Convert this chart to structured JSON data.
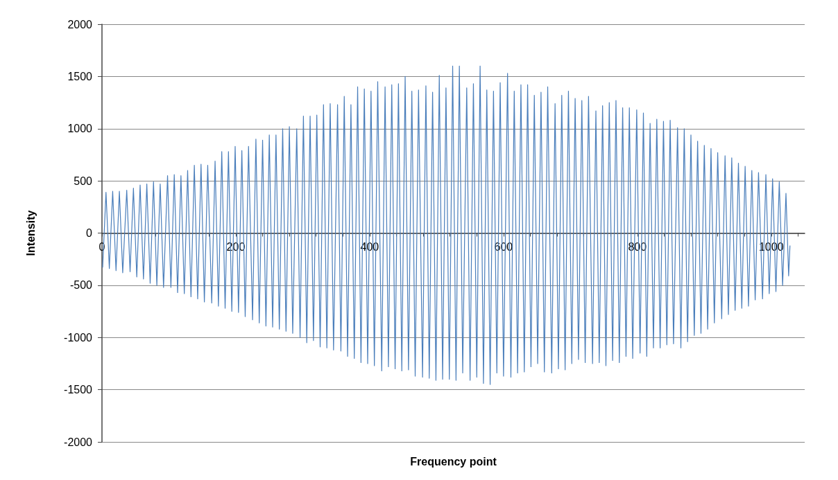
{
  "chart_data": {
    "type": "line",
    "xlabel": "Frequency point",
    "ylabel": "Intensity",
    "xlim": [
      0,
      1050
    ],
    "xticks": [
      0,
      {
        "value": 40,
        "label": null
      },
      {
        "value": 80,
        "label": null
      },
      {
        "value": 120,
        "label": null
      },
      {
        "value": 160,
        "label": null
      },
      200,
      {
        "value": 240,
        "label": null
      },
      {
        "value": 280,
        "label": null
      },
      {
        "value": 320,
        "label": null
      },
      {
        "value": 360,
        "label": null
      },
      400,
      {
        "value": 440,
        "label": null
      },
      {
        "value": 480,
        "label": null
      },
      {
        "value": 520,
        "label": null
      },
      {
        "value": 560,
        "label": null
      },
      600,
      {
        "value": 640,
        "label": null
      },
      {
        "value": 680,
        "label": null
      },
      {
        "value": 720,
        "label": null
      },
      {
        "value": 760,
        "label": null
      },
      800,
      {
        "value": 840,
        "label": null
      },
      {
        "value": 880,
        "label": null
      },
      {
        "value": 920,
        "label": null
      },
      {
        "value": 960,
        "label": null
      },
      1000,
      {
        "value": 1040,
        "label": null
      }
    ],
    "ylim": [
      -2000,
      2000
    ],
    "yticks": [
      -2000,
      -1500,
      -1000,
      -500,
      0,
      500,
      1000,
      1500,
      2000
    ],
    "grid": "y",
    "marker": "none",
    "series": [
      {
        "color": "#4a7ebb",
        "x": [
          1,
          6,
          11,
          16,
          21,
          26,
          31,
          37,
          42,
          47,
          52,
          57,
          62,
          67,
          72,
          77,
          82,
          87,
          92,
          98,
          103,
          108,
          113,
          118,
          123,
          128,
          133,
          138,
          143,
          148,
          153,
          158,
          164,
          169,
          174,
          179,
          184,
          189,
          194,
          199,
          204,
          209,
          214,
          219,
          225,
          230,
          235,
          240,
          245,
          250,
          255,
          260,
          265,
          270,
          275,
          280,
          285,
          291,
          296,
          301,
          306,
          311,
          316,
          321,
          326,
          331,
          336,
          341,
          346,
          352,
          357,
          362,
          367,
          372,
          377,
          382,
          387,
          392,
          397,
          402,
          407,
          412,
          418,
          423,
          428,
          433,
          438,
          443,
          448,
          453,
          458,
          463,
          468,
          473,
          479,
          484,
          489,
          494,
          499,
          504,
          509,
          514,
          519,
          524,
          529,
          534,
          539,
          545,
          550,
          555,
          560,
          565,
          570,
          575,
          580,
          585,
          590,
          595,
          600,
          606,
          611,
          616,
          621,
          626,
          631,
          636,
          641,
          646,
          651,
          656,
          661,
          666,
          672,
          677,
          682,
          687,
          692,
          697,
          702,
          707,
          712,
          717,
          722,
          727,
          733,
          738,
          743,
          748,
          753,
          758,
          763,
          768,
          773,
          778,
          783,
          788,
          793,
          799,
          804,
          809,
          814,
          819,
          824,
          829,
          834,
          839,
          844,
          849,
          854,
          860,
          865,
          870,
          875,
          880,
          885,
          890,
          895,
          900,
          905,
          910,
          915,
          920,
          926,
          931,
          936,
          941,
          946,
          951,
          956,
          961,
          966,
          971,
          976,
          981,
          987,
          992,
          997,
          1002,
          1007,
          1012,
          1017,
          1022,
          1026,
          1028
        ],
        "values": [
          -330,
          390,
          -340,
          400,
          -360,
          400,
          -380,
          410,
          -370,
          430,
          -420,
          460,
          -440,
          470,
          -480,
          490,
          -500,
          470,
          -520,
          550,
          -520,
          560,
          -570,
          550,
          -580,
          600,
          -610,
          650,
          -630,
          660,
          -660,
          650,
          -670,
          690,
          -700,
          780,
          -720,
          780,
          -750,
          830,
          -760,
          790,
          -800,
          830,
          -830,
          900,
          -860,
          890,
          -890,
          940,
          -900,
          940,
          -920,
          1000,
          -940,
          1020,
          -960,
          1000,
          -1000,
          1120,
          -1050,
          1120,
          -1030,
          1130,
          -1090,
          1230,
          -1100,
          1240,
          -1120,
          1230,
          -1130,
          1310,
          -1180,
          1230,
          -1200,
          1400,
          -1240,
          1380,
          -1250,
          1360,
          -1270,
          1450,
          -1320,
          1400,
          -1280,
          1420,
          -1300,
          1430,
          -1320,
          1500,
          -1310,
          1360,
          -1370,
          1370,
          -1380,
          1410,
          -1390,
          1350,
          -1410,
          1510,
          -1400,
          1390,
          -1400,
          1600,
          -1410,
          1600,
          -1340,
          1390,
          -1410,
          1430,
          -1380,
          1600,
          -1440,
          1370,
          -1450,
          1360,
          -1340,
          1440,
          -1370,
          1530,
          -1380,
          1360,
          -1340,
          1420,
          -1330,
          1420,
          -1280,
          1320,
          -1250,
          1350,
          -1330,
          1400,
          -1340,
          1240,
          -1300,
          1320,
          -1310,
          1360,
          -1250,
          1290,
          -1210,
          1270,
          -1240,
          1310,
          -1250,
          1170,
          -1240,
          1220,
          -1270,
          1250,
          -1220,
          1270,
          -1240,
          1200,
          -1180,
          1200,
          -1200,
          1180,
          -1150,
          1150,
          -1180,
          1050,
          -1100,
          1090,
          -1100,
          1070,
          -1070,
          1080,
          -1060,
          1010,
          -1100,
          1000,
          -1040,
          940,
          -980,
          880,
          -960,
          840,
          -920,
          810,
          -860,
          770,
          -820,
          740,
          -780,
          720,
          -740,
          670,
          -720,
          640,
          -700,
          600,
          -640,
          580,
          -630,
          560,
          -580,
          520,
          -560,
          490,
          -500,
          380,
          -410,
          -120
        ]
      }
    ]
  }
}
